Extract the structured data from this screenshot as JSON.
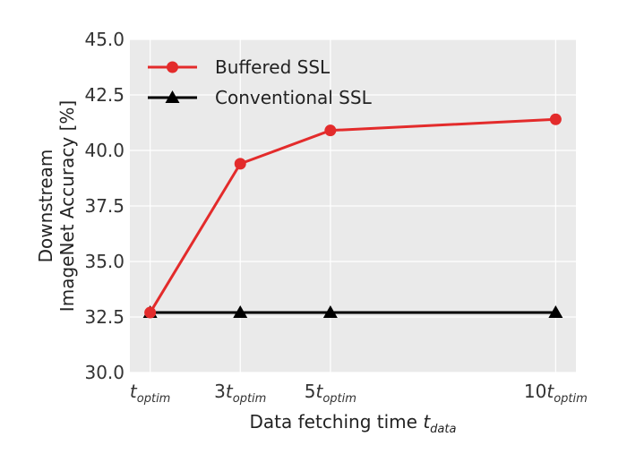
{
  "chart_data": {
    "type": "line",
    "x_ticks": [
      {
        "x": 1,
        "coef": "",
        "var": "t",
        "sub": "optim"
      },
      {
        "x": 3,
        "coef": "3",
        "var": "t",
        "sub": "optim"
      },
      {
        "x": 5,
        "coef": "5",
        "var": "t",
        "sub": "optim"
      },
      {
        "x": 10,
        "coef": "10",
        "var": "t",
        "sub": "optim"
      }
    ],
    "xlim": [
      0.55,
      10.45
    ],
    "ylim": [
      30.0,
      45.0
    ],
    "y_ticks": [
      "30.0",
      "32.5",
      "35.0",
      "37.5",
      "40.0",
      "42.5",
      "45.0"
    ],
    "xlabel": {
      "text": "Data fetching time ",
      "var": "t",
      "sub": "data"
    },
    "ylabel_lines": [
      "Downstream",
      "ImageNet Accuracy [%]"
    ],
    "grid": true,
    "legend_position": "upper-left",
    "series": [
      {
        "name": "Buffered SSL",
        "color": "#e32b2b",
        "marker": "circle",
        "x": [
          1,
          3,
          5,
          10
        ],
        "y": [
          32.7,
          39.4,
          40.9,
          41.4
        ]
      },
      {
        "name": "Conventional SSL",
        "color": "#000000",
        "marker": "triangle",
        "x": [
          1,
          3,
          5,
          10
        ],
        "y": [
          32.7,
          32.7,
          32.7,
          32.7
        ]
      }
    ]
  }
}
